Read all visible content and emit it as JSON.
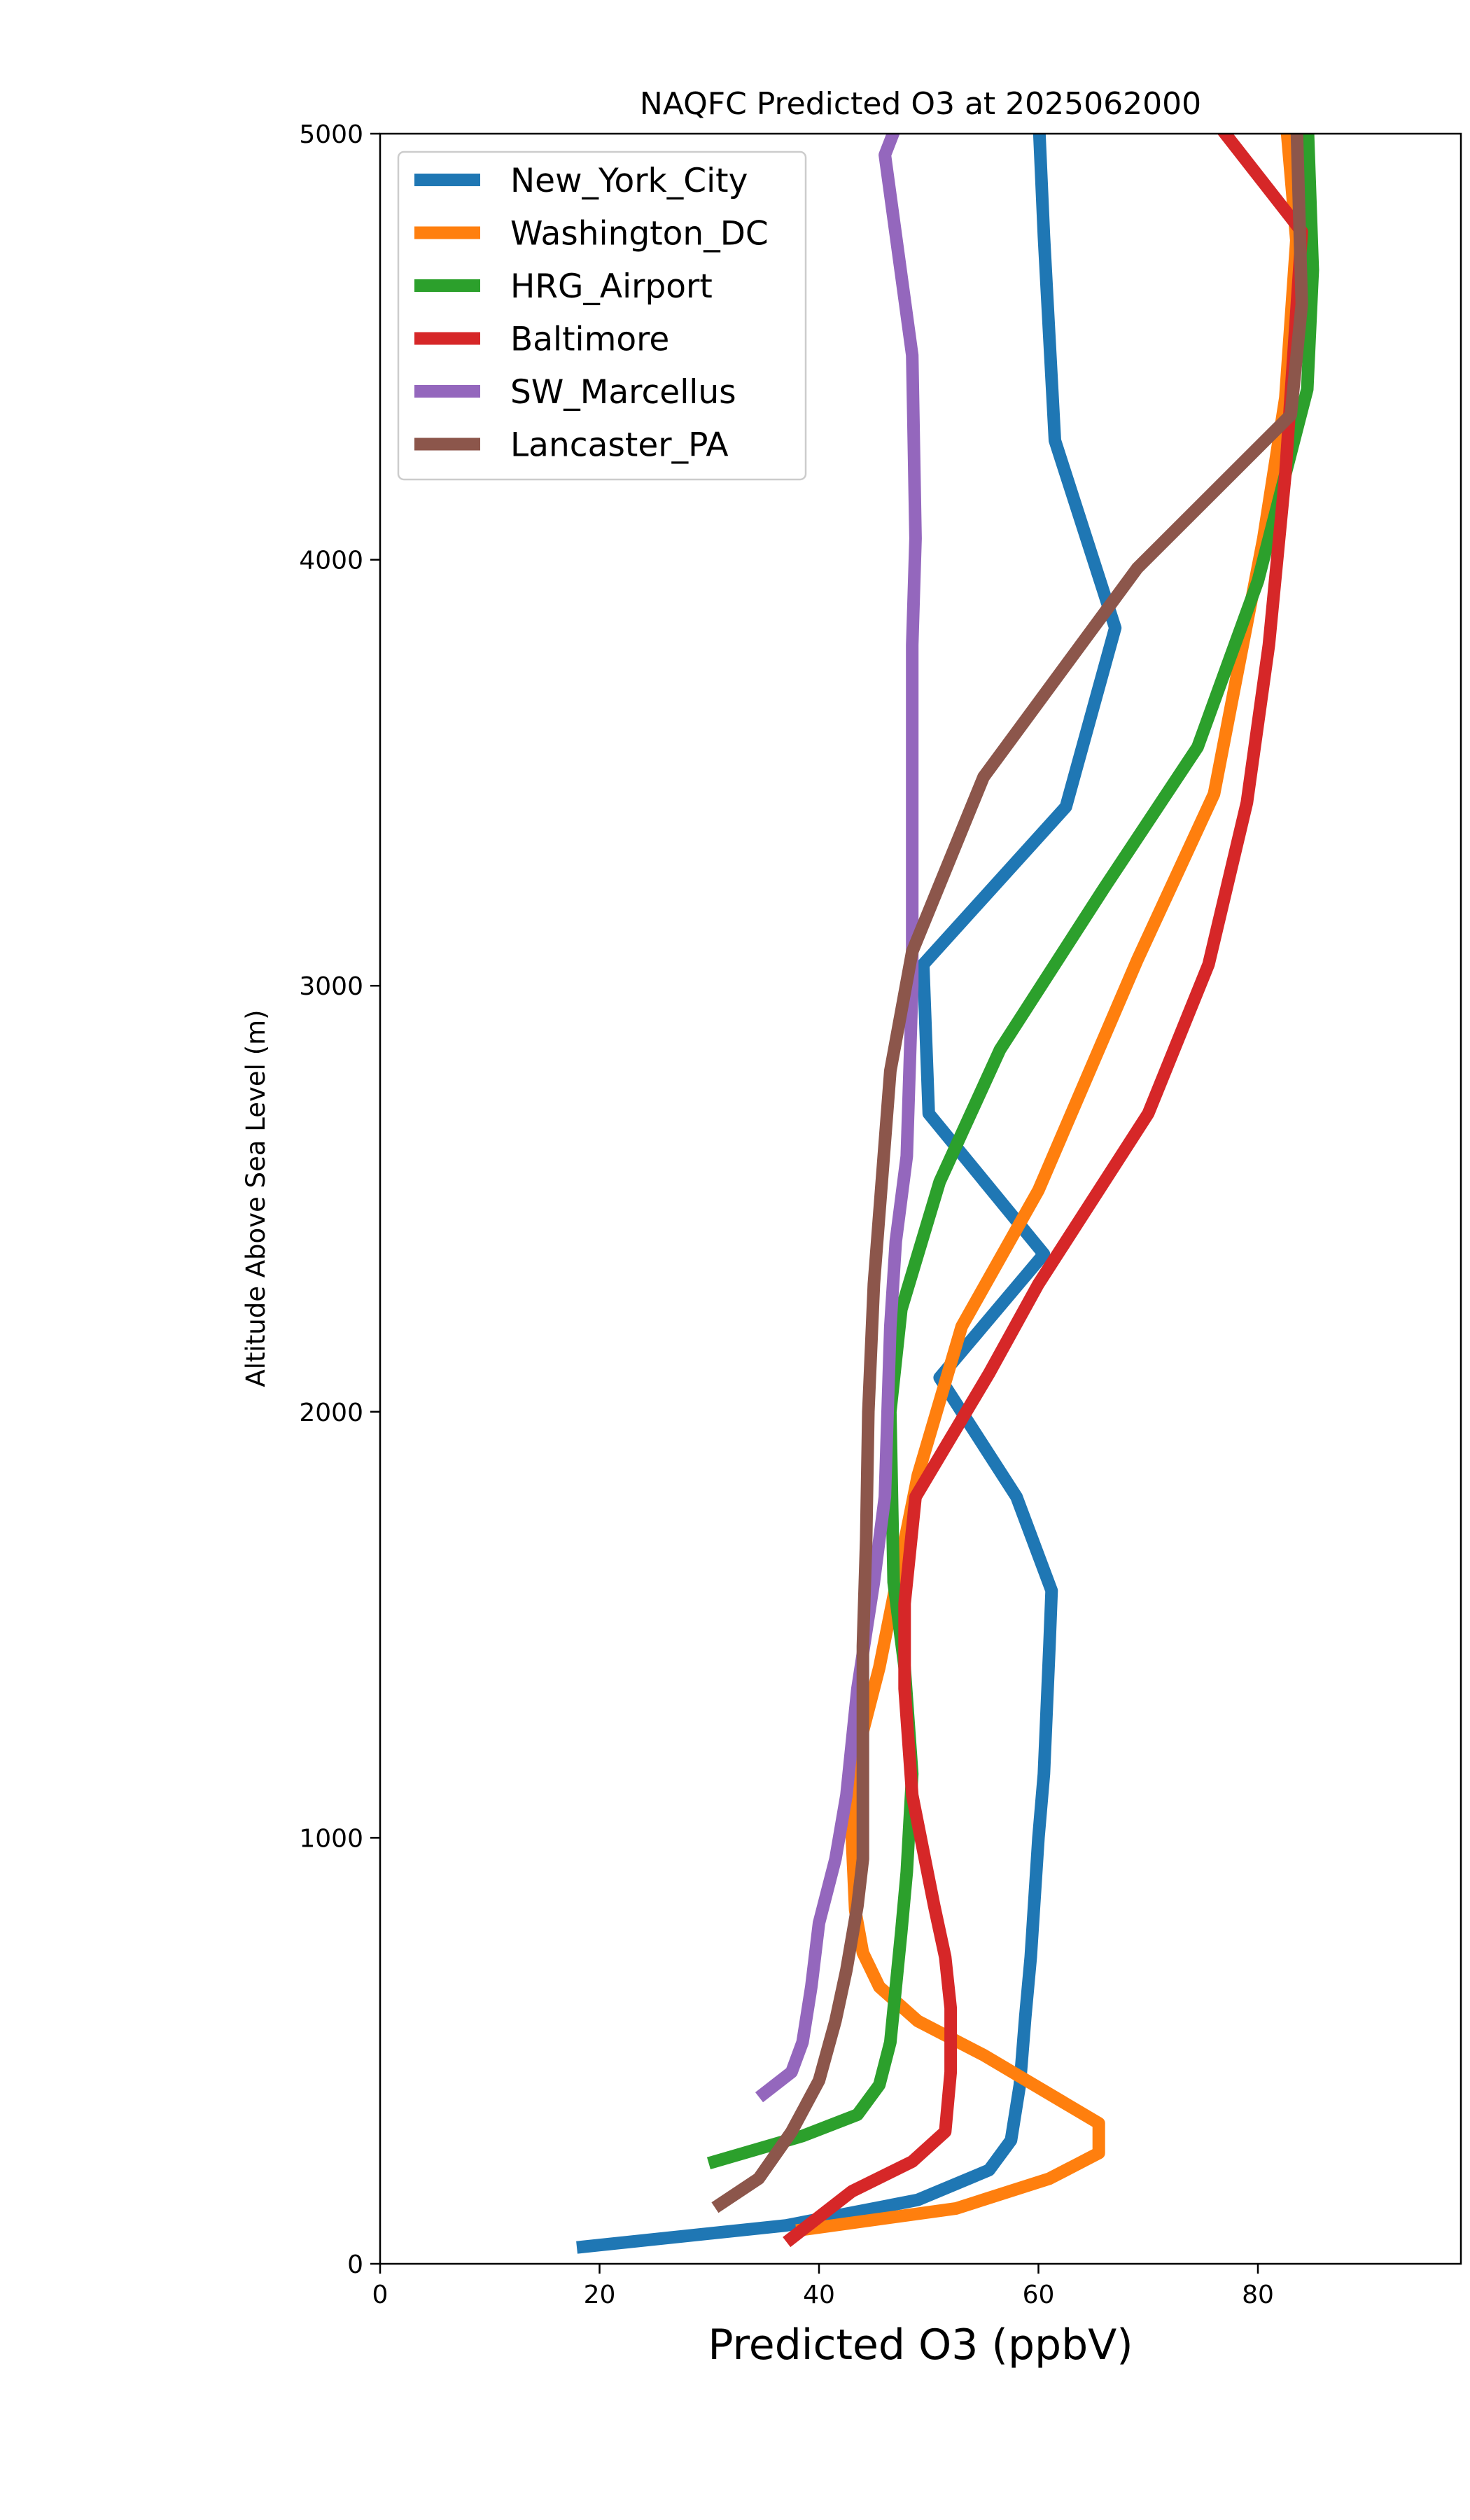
{
  "chart_data": {
    "type": "line",
    "title": "NAQFC Predicted O3 at 2025062000",
    "xlabel": "Predicted O3 (ppbV)",
    "ylabel": "Altitude Above Sea Level (m)",
    "xlim": [
      0,
      98.5
    ],
    "ylim": [
      0,
      5000
    ],
    "xticks": [
      "0",
      "20",
      "40",
      "60",
      "80"
    ],
    "yticks": [
      "0",
      "1000",
      "2000",
      "3000",
      "4000",
      "5000"
    ],
    "grid": false,
    "legend_position": "upper-left",
    "series": [
      {
        "name": "New_York_City",
        "color": "#1f77b4",
        "points": [
          [
            18.5,
            40
          ],
          [
            37,
            90
          ],
          [
            49,
            150
          ],
          [
            55.5,
            220
          ],
          [
            57.5,
            290
          ],
          [
            58.3,
            420
          ],
          [
            58.8,
            580
          ],
          [
            59.3,
            720
          ],
          [
            60,
            1000
          ],
          [
            60.5,
            1150
          ],
          [
            61,
            1450
          ],
          [
            61.2,
            1580
          ],
          [
            58,
            1800
          ],
          [
            51,
            2080
          ],
          [
            60.5,
            2370
          ],
          [
            50,
            2700
          ],
          [
            49.5,
            3050
          ],
          [
            62.5,
            3420
          ],
          [
            67,
            3840
          ],
          [
            61.5,
            4280
          ],
          [
            60.5,
            4760
          ],
          [
            60,
            5050
          ]
        ]
      },
      {
        "name": "Washington_DC",
        "color": "#ff7f0e",
        "points": [
          [
            38.5,
            80
          ],
          [
            52.5,
            130
          ],
          [
            61,
            200
          ],
          [
            65.5,
            260
          ],
          [
            65.5,
            330
          ],
          [
            55,
            490
          ],
          [
            49,
            570
          ],
          [
            45.5,
            650
          ],
          [
            44,
            730
          ],
          [
            43.3,
            830
          ],
          [
            43,
            1000
          ],
          [
            43.5,
            1200
          ],
          [
            45.5,
            1400
          ],
          [
            49,
            1850
          ],
          [
            53,
            2200
          ],
          [
            60,
            2520
          ],
          [
            69,
            3060
          ],
          [
            76,
            3450
          ],
          [
            80.5,
            4050
          ],
          [
            82.5,
            4380
          ],
          [
            83.5,
            4750
          ],
          [
            82.5,
            5050
          ]
        ]
      },
      {
        "name": "HRG_Airport",
        "color": "#2ca02c",
        "points": [
          [
            30.5,
            240
          ],
          [
            38.5,
            300
          ],
          [
            43.5,
            350
          ],
          [
            45.5,
            420
          ],
          [
            46.5,
            520
          ],
          [
            47.5,
            780
          ],
          [
            48,
            920
          ],
          [
            48.5,
            1150
          ],
          [
            47.8,
            1400
          ],
          [
            46.8,
            1600
          ],
          [
            46.5,
            2000
          ],
          [
            47.5,
            2240
          ],
          [
            51,
            2540
          ],
          [
            56.5,
            2850
          ],
          [
            66,
            3230
          ],
          [
            74.5,
            3560
          ],
          [
            80,
            3950
          ],
          [
            84.5,
            4400
          ],
          [
            85,
            4680
          ],
          [
            84.5,
            5050
          ]
        ]
      },
      {
        "name": "Baltimore",
        "color": "#d62728",
        "points": [
          [
            37.5,
            60
          ],
          [
            43,
            170
          ],
          [
            48.5,
            240
          ],
          [
            51.5,
            310
          ],
          [
            52,
            450
          ],
          [
            52,
            600
          ],
          [
            51.5,
            720
          ],
          [
            50.5,
            840
          ],
          [
            49.5,
            970
          ],
          [
            48.5,
            1100
          ],
          [
            47.8,
            1350
          ],
          [
            47.8,
            1550
          ],
          [
            48.8,
            1800
          ],
          [
            55.5,
            2090
          ],
          [
            60,
            2300
          ],
          [
            70,
            2700
          ],
          [
            75.5,
            3050
          ],
          [
            79,
            3430
          ],
          [
            81,
            3800
          ],
          [
            82.5,
            4200
          ],
          [
            84,
            4770
          ],
          [
            75.5,
            5050
          ]
        ]
      },
      {
        "name": "SW_Marcellus",
        "color": "#9467bd",
        "points": [
          [
            35,
            400
          ],
          [
            37.5,
            450
          ],
          [
            38.5,
            520
          ],
          [
            39.3,
            650
          ],
          [
            40,
            800
          ],
          [
            41.5,
            950
          ],
          [
            42.5,
            1100
          ],
          [
            43.5,
            1350
          ],
          [
            45,
            1600
          ],
          [
            46,
            1800
          ],
          [
            46.5,
            2200
          ],
          [
            47,
            2400
          ],
          [
            48,
            2600
          ],
          [
            48.5,
            3000
          ],
          [
            48.5,
            3800
          ],
          [
            48.8,
            4050
          ],
          [
            48.5,
            4480
          ],
          [
            46,
            4950
          ],
          [
            47.5,
            5050
          ]
        ]
      },
      {
        "name": "Lancaster_PA",
        "color": "#8c564b",
        "points": [
          [
            31,
            140
          ],
          [
            34.5,
            200
          ],
          [
            37.5,
            310
          ],
          [
            40,
            430
          ],
          [
            41.5,
            570
          ],
          [
            42.5,
            690
          ],
          [
            43.5,
            840
          ],
          [
            44,
            950
          ],
          [
            44,
            1200
          ],
          [
            44,
            1450
          ],
          [
            44.3,
            1700
          ],
          [
            44.5,
            2000
          ],
          [
            45,
            2300
          ],
          [
            46.5,
            2800
          ],
          [
            48.5,
            3080
          ],
          [
            55,
            3490
          ],
          [
            69,
            3980
          ],
          [
            83,
            4340
          ],
          [
            84,
            4600
          ],
          [
            83.5,
            5050
          ]
        ]
      }
    ]
  }
}
